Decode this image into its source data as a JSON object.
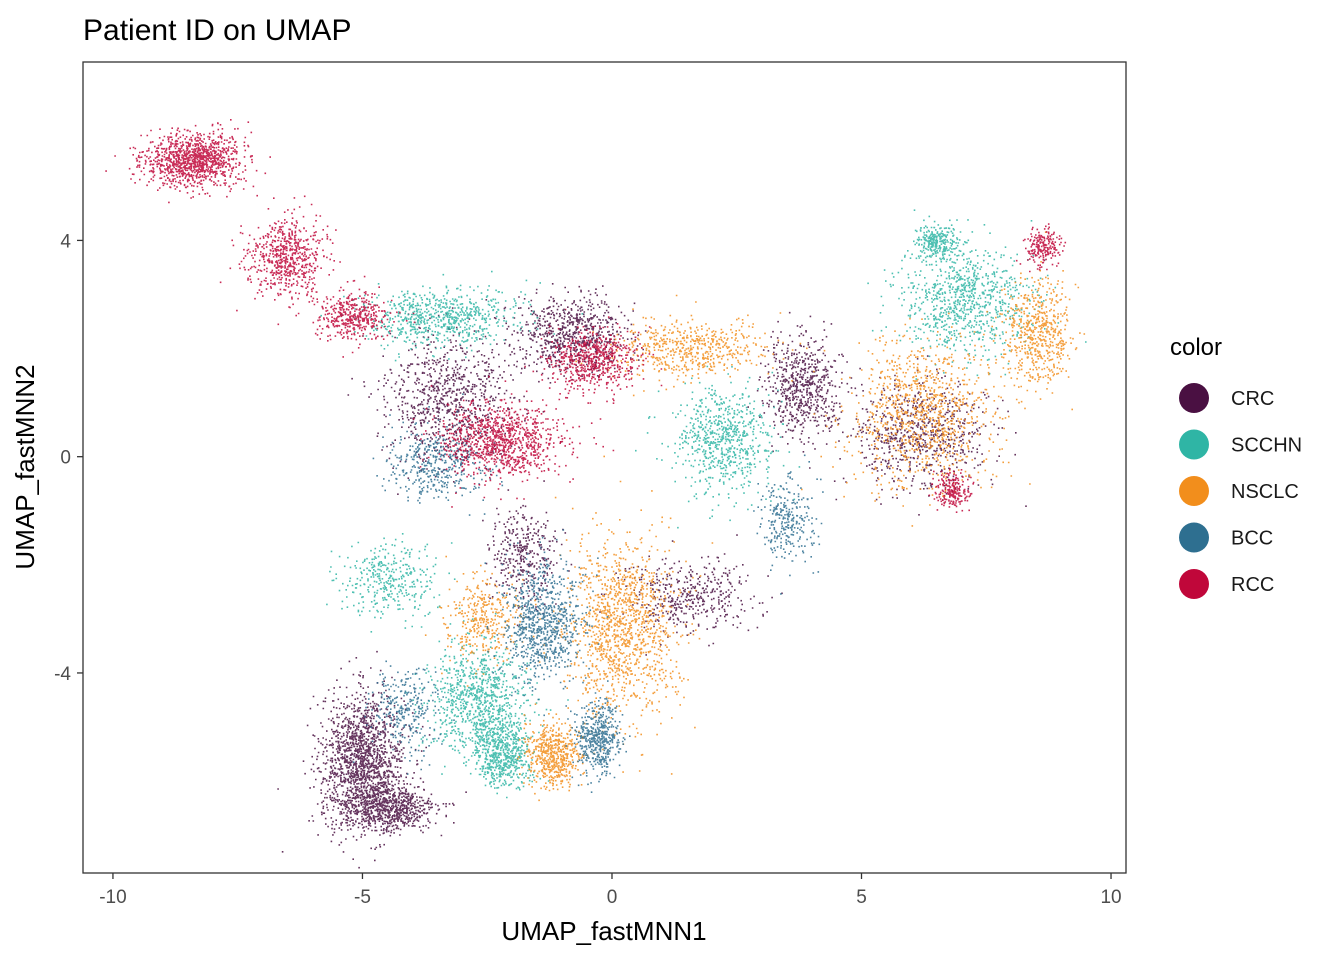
{
  "chart_data": {
    "type": "scatter",
    "title": "Patient ID on UMAP",
    "xlabel": "UMAP_fastMNN1",
    "ylabel": "UMAP_fastMNN2",
    "xlim": [
      -10.6,
      10.3
    ],
    "ylim": [
      -7.7,
      7.3
    ],
    "xticks": [
      -10,
      -5,
      0,
      5,
      10
    ],
    "yticks": [
      -4,
      0,
      4
    ],
    "xtick_labels": [
      "-10",
      "-5",
      "0",
      "5",
      "10"
    ],
    "ytick_labels": [
      "-4",
      "0",
      "4"
    ],
    "grid": false,
    "legend": {
      "title": "color",
      "placement": "right",
      "entries": [
        "CRC",
        "SCCHN",
        "NSCLC",
        "BCC",
        "RCC"
      ]
    },
    "series": [
      {
        "name": "CRC",
        "color": "#4a1042",
        "regions": [
          {
            "cx": -5.0,
            "cy": -5.6,
            "sx": 0.75,
            "sy": 1.1,
            "w": 2.2
          },
          {
            "cx": -4.5,
            "cy": -6.5,
            "sx": 0.9,
            "sy": 0.4,
            "w": 1.0
          },
          {
            "cx": -3.3,
            "cy": 1.1,
            "sx": 1.1,
            "sy": 1.1,
            "w": 1.2
          },
          {
            "cx": -0.8,
            "cy": 2.3,
            "sx": 1.0,
            "sy": 0.6,
            "w": 1.0
          },
          {
            "cx": 3.8,
            "cy": 1.3,
            "sx": 0.7,
            "sy": 0.8,
            "w": 0.9
          },
          {
            "cx": 6.2,
            "cy": 0.4,
            "sx": 1.2,
            "sy": 0.9,
            "w": 1.0
          },
          {
            "cx": -1.8,
            "cy": -1.8,
            "sx": 0.6,
            "sy": 0.8,
            "w": 0.5
          },
          {
            "cx": 1.5,
            "cy": -2.6,
            "sx": 1.2,
            "sy": 0.6,
            "w": 0.6
          }
        ]
      },
      {
        "name": "SCCHN",
        "color": "#2fb5a5",
        "regions": [
          {
            "cx": -2.7,
            "cy": -4.5,
            "sx": 0.9,
            "sy": 0.9,
            "w": 1.3
          },
          {
            "cx": -2.2,
            "cy": -5.5,
            "sx": 0.5,
            "sy": 0.5,
            "w": 0.8
          },
          {
            "cx": 2.2,
            "cy": 0.3,
            "sx": 0.9,
            "sy": 0.9,
            "w": 1.0
          },
          {
            "cx": 7.0,
            "cy": 2.9,
            "sx": 1.2,
            "sy": 0.9,
            "w": 1.2
          },
          {
            "cx": -3.5,
            "cy": 2.6,
            "sx": 1.4,
            "sy": 0.5,
            "w": 1.0
          },
          {
            "cx": -4.5,
            "cy": -2.3,
            "sx": 0.9,
            "sy": 0.6,
            "w": 0.5
          },
          {
            "cx": 6.5,
            "cy": 4.0,
            "sx": 0.4,
            "sy": 0.3,
            "w": 0.4
          }
        ]
      },
      {
        "name": "NSCLC",
        "color": "#f28e1c",
        "regions": [
          {
            "cx": 0.2,
            "cy": -3.2,
            "sx": 1.0,
            "sy": 1.5,
            "w": 1.8
          },
          {
            "cx": -1.2,
            "cy": -5.5,
            "sx": 0.5,
            "sy": 0.5,
            "w": 0.8
          },
          {
            "cx": 6.2,
            "cy": 0.8,
            "sx": 1.3,
            "sy": 1.2,
            "w": 1.4
          },
          {
            "cx": 8.5,
            "cy": 2.3,
            "sx": 0.6,
            "sy": 0.9,
            "w": 0.8
          },
          {
            "cx": 1.5,
            "cy": 2.0,
            "sx": 1.4,
            "sy": 0.5,
            "w": 0.8
          },
          {
            "cx": -2.6,
            "cy": -3.0,
            "sx": 0.7,
            "sy": 0.7,
            "w": 0.5
          }
        ]
      },
      {
        "name": "BCC",
        "color": "#2e6f90",
        "regions": [
          {
            "cx": -1.4,
            "cy": -3.1,
            "sx": 0.7,
            "sy": 1.0,
            "w": 1.2
          },
          {
            "cx": -0.3,
            "cy": -5.2,
            "sx": 0.4,
            "sy": 0.6,
            "w": 0.7
          },
          {
            "cx": -3.5,
            "cy": -0.1,
            "sx": 0.9,
            "sy": 0.6,
            "w": 0.6
          },
          {
            "cx": 3.5,
            "cy": -1.2,
            "sx": 0.5,
            "sy": 0.7,
            "w": 0.4
          },
          {
            "cx": -4.2,
            "cy": -4.7,
            "sx": 0.6,
            "sy": 0.7,
            "w": 0.4
          }
        ]
      },
      {
        "name": "RCC",
        "color": "#c0073a",
        "regions": [
          {
            "cx": -8.4,
            "cy": 5.5,
            "sx": 0.9,
            "sy": 0.45,
            "w": 1.6
          },
          {
            "cx": -6.5,
            "cy": 3.7,
            "sx": 0.7,
            "sy": 0.7,
            "w": 0.9
          },
          {
            "cx": -5.2,
            "cy": 2.6,
            "sx": 0.6,
            "sy": 0.4,
            "w": 0.6
          },
          {
            "cx": -2.2,
            "cy": 0.3,
            "sx": 1.1,
            "sy": 0.6,
            "w": 1.4
          },
          {
            "cx": -0.4,
            "cy": 1.8,
            "sx": 0.8,
            "sy": 0.5,
            "w": 0.9
          },
          {
            "cx": 6.8,
            "cy": -0.6,
            "sx": 0.3,
            "sy": 0.3,
            "w": 0.3
          },
          {
            "cx": 8.6,
            "cy": 3.9,
            "sx": 0.3,
            "sy": 0.3,
            "w": 0.3
          }
        ]
      }
    ]
  }
}
